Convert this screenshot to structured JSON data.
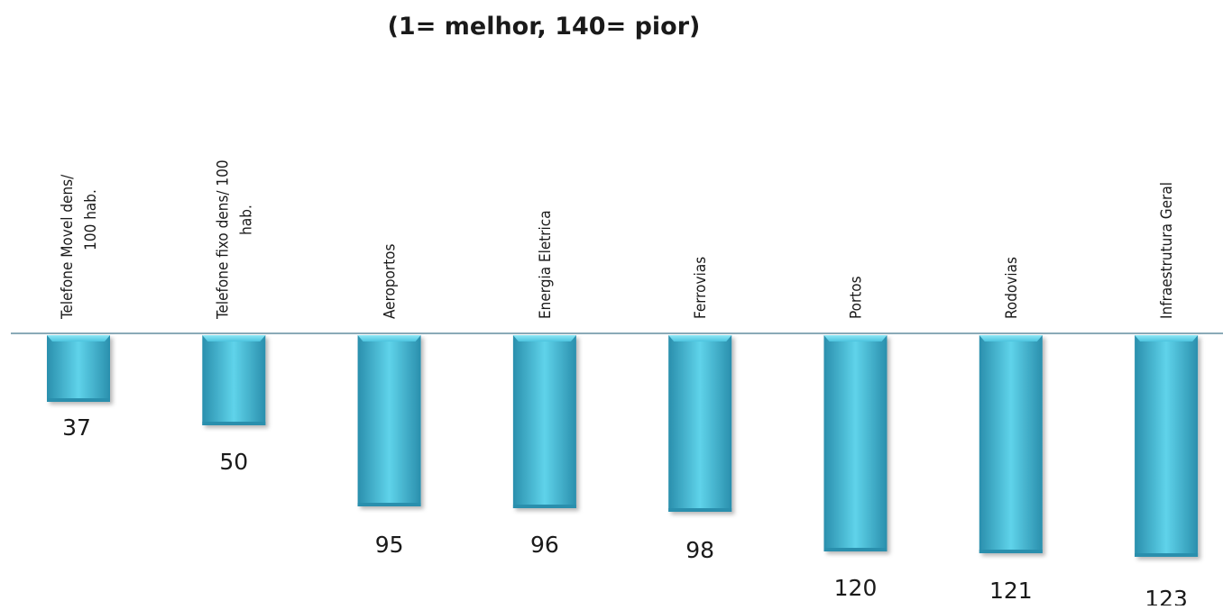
{
  "chart_data": {
    "type": "bar",
    "title": "(1= melhor, 140= pior)",
    "orientation": "inverted-vertical",
    "categories": [
      [
        "Telefone Movel dens/",
        "100 hab."
      ],
      [
        "Telefone fixo dens/ 100",
        "hab."
      ],
      [
        "Aeroportos"
      ],
      [
        "Energia Eletrica"
      ],
      [
        "Ferrovias"
      ],
      [
        "Portos"
      ],
      [
        "Rodovias"
      ],
      [
        "Infraestrutura Geral"
      ]
    ],
    "values": [
      37,
      50,
      95,
      96,
      98,
      120,
      121,
      123
    ],
    "ylim": [
      0,
      140
    ],
    "grid": false,
    "legend": "none",
    "colors": {
      "bar_light": "#5fd3ea",
      "bar_mid": "#35b6d4",
      "bar_dark": "#2a8fad",
      "axis": "#8aaab8"
    }
  }
}
